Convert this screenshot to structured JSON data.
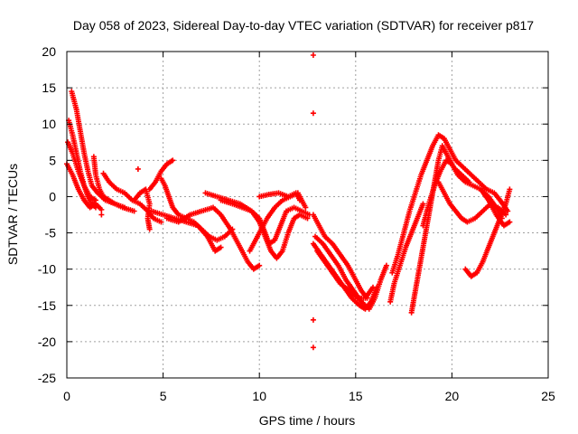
{
  "chart_data": {
    "type": "scatter",
    "title": "Day 058 of 2023, Sidereal Day-to-day VTEC variation (SDTVAR) for receiver p817",
    "xlabel": "GPS time / hours",
    "ylabel": "SDTVAR / TECUs",
    "xlim": [
      0,
      25
    ],
    "ylim": [
      -25,
      20
    ],
    "xticks": [
      0,
      5,
      10,
      15,
      20,
      25
    ],
    "yticks": [
      -25,
      -20,
      -15,
      -10,
      -5,
      0,
      5,
      10,
      15,
      20
    ],
    "grid": true,
    "marker": "+",
    "color": "#ff0000",
    "series": [
      {
        "name": "s1",
        "points": [
          [
            0.0,
            4.5
          ],
          [
            0.3,
            3.0
          ],
          [
            0.6,
            1.0
          ],
          [
            0.9,
            -0.5
          ],
          [
            1.2,
            -1.5
          ],
          [
            1.5,
            -1.0
          ],
          [
            1.8,
            -1.8
          ]
        ]
      },
      {
        "name": "s2",
        "points": [
          [
            0.05,
            7.5
          ],
          [
            0.3,
            6.0
          ],
          [
            0.6,
            3.5
          ],
          [
            0.9,
            1.5
          ],
          [
            1.2,
            0.0
          ],
          [
            1.5,
            -0.5
          ]
        ]
      },
      {
        "name": "s3",
        "points": [
          [
            0.1,
            10.5
          ],
          [
            0.3,
            8.5
          ],
          [
            0.5,
            6.0
          ],
          [
            0.7,
            3.5
          ],
          [
            0.9,
            1.5
          ],
          [
            1.1,
            0.0
          ],
          [
            1.3,
            -1.0
          ],
          [
            1.5,
            -1.5
          ]
        ]
      },
      {
        "name": "s4",
        "points": [
          [
            0.25,
            14.5
          ],
          [
            0.5,
            12.0
          ],
          [
            0.7,
            9.0
          ],
          [
            0.9,
            6.0
          ],
          [
            1.1,
            3.5
          ],
          [
            1.3,
            1.5
          ],
          [
            1.6,
            0.5
          ],
          [
            2.0,
            -0.5
          ],
          [
            2.5,
            -1.0
          ],
          [
            3.0,
            -1.5
          ]
        ]
      },
      {
        "name": "s5",
        "points": [
          [
            1.4,
            5.5
          ],
          [
            1.5,
            3.0
          ],
          [
            1.7,
            1.0
          ],
          [
            1.9,
            0.0
          ],
          [
            2.2,
            -0.5
          ],
          [
            2.5,
            -1.0
          ],
          [
            2.9,
            -1.5
          ],
          [
            3.5,
            -2.0
          ]
        ]
      },
      {
        "name": "s6",
        "points": [
          [
            1.9,
            3.2
          ],
          [
            2.2,
            2.0
          ],
          [
            2.6,
            1.0
          ],
          [
            3.0,
            0.5
          ],
          [
            3.4,
            -0.5
          ],
          [
            3.8,
            -1.0
          ],
          [
            4.2,
            -2.0
          ],
          [
            4.5,
            -3.0
          ],
          [
            4.9,
            -3.5
          ]
        ]
      },
      {
        "name": "s7",
        "points": [
          [
            3.5,
            -0.5
          ],
          [
            3.8,
            0.5
          ],
          [
            4.1,
            1.0
          ],
          [
            4.3,
            -1.0
          ],
          [
            4.2,
            -3.0
          ],
          [
            4.3,
            -4.5
          ]
        ]
      },
      {
        "name": "s8",
        "points": [
          [
            4.3,
            1.0
          ],
          [
            4.6,
            2.0
          ],
          [
            4.9,
            3.5
          ],
          [
            5.2,
            4.5
          ],
          [
            5.5,
            5.0
          ]
        ]
      },
      {
        "name": "s9",
        "points": [
          [
            4.9,
            2.5
          ],
          [
            5.1,
            1.5
          ],
          [
            5.3,
            0.0
          ],
          [
            5.5,
            -1.5
          ],
          [
            5.8,
            -2.5
          ],
          [
            6.2,
            -3.0
          ],
          [
            6.6,
            -3.5
          ],
          [
            7.0,
            -4.5
          ],
          [
            7.4,
            -5.5
          ],
          [
            7.8,
            -6.0
          ],
          [
            8.2,
            -5.5
          ],
          [
            8.6,
            -4.5
          ]
        ]
      },
      {
        "name": "s10",
        "points": [
          [
            4.4,
            -2.0
          ],
          [
            5.0,
            -2.5
          ],
          [
            5.6,
            -3.0
          ],
          [
            6.2,
            -3.5
          ],
          [
            6.8,
            -4.0
          ],
          [
            7.3,
            -5.5
          ],
          [
            7.7,
            -7.5
          ],
          [
            8.0,
            -7.0
          ]
        ]
      },
      {
        "name": "s11",
        "points": [
          [
            5.2,
            -3.0
          ],
          [
            5.8,
            -3.5
          ],
          [
            6.4,
            -2.5
          ],
          [
            7.0,
            -2.0
          ],
          [
            7.6,
            -1.5
          ],
          [
            8.0,
            -2.5
          ],
          [
            8.5,
            -4.5
          ],
          [
            9.0,
            -7.0
          ],
          [
            9.4,
            -9.0
          ],
          [
            9.7,
            -10.0
          ],
          [
            10.0,
            -9.5
          ]
        ]
      },
      {
        "name": "s12",
        "points": [
          [
            7.2,
            0.5
          ],
          [
            7.8,
            0.0
          ],
          [
            8.4,
            -0.5
          ],
          [
            9.0,
            -1.0
          ],
          [
            9.6,
            -2.0
          ],
          [
            10.0,
            -3.5
          ],
          [
            10.3,
            -5.5
          ],
          [
            10.6,
            -7.5
          ],
          [
            10.9,
            -8.5
          ],
          [
            11.2,
            -7.5
          ],
          [
            11.5,
            -5.0
          ],
          [
            11.8,
            -3.0
          ],
          [
            12.1,
            -2.5
          ],
          [
            12.5,
            -3.0
          ]
        ]
      },
      {
        "name": "s13",
        "points": [
          [
            8.0,
            -0.5
          ],
          [
            8.6,
            -1.0
          ],
          [
            9.1,
            -1.5
          ],
          [
            9.6,
            -2.0
          ],
          [
            10.0,
            -3.0
          ],
          [
            10.3,
            -5.0
          ],
          [
            10.5,
            -6.5
          ],
          [
            10.8,
            -6.0
          ],
          [
            11.1,
            -4.0
          ],
          [
            11.4,
            -2.0
          ],
          [
            11.8,
            -1.5
          ],
          [
            12.2,
            -2.0
          ],
          [
            12.6,
            -2.5
          ]
        ]
      },
      {
        "name": "s14",
        "points": [
          [
            9.5,
            -7.5
          ],
          [
            9.8,
            -6.0
          ],
          [
            10.1,
            -4.5
          ],
          [
            10.4,
            -3.0
          ],
          [
            10.8,
            -1.5
          ],
          [
            11.2,
            -0.5
          ],
          [
            11.6,
            0.0
          ],
          [
            12.0,
            0.5
          ],
          [
            12.2,
            -0.5
          ],
          [
            12.4,
            -1.5
          ]
        ]
      },
      {
        "name": "s15",
        "points": [
          [
            10.0,
            0.0
          ],
          [
            10.5,
            0.3
          ],
          [
            11.0,
            0.5
          ],
          [
            11.5,
            0.0
          ],
          [
            11.9,
            0.5
          ],
          [
            12.1,
            -0.5
          ]
        ]
      },
      {
        "name": "s16",
        "points": [
          [
            12.8,
            -2.5
          ],
          [
            13.1,
            -4.0
          ],
          [
            13.4,
            -5.5
          ],
          [
            13.8,
            -6.5
          ],
          [
            14.2,
            -8.0
          ],
          [
            14.6,
            -9.5
          ],
          [
            15.0,
            -11.5
          ],
          [
            15.3,
            -13.0
          ],
          [
            15.6,
            -14.0
          ]
        ]
      },
      {
        "name": "s17",
        "points": [
          [
            12.9,
            -5.5
          ],
          [
            13.3,
            -6.5
          ],
          [
            13.7,
            -8.0
          ],
          [
            14.1,
            -9.5
          ],
          [
            14.5,
            -11.5
          ],
          [
            14.9,
            -13.0
          ],
          [
            15.3,
            -14.5
          ],
          [
            15.7,
            -15.5
          ],
          [
            16.0,
            -14.0
          ],
          [
            16.3,
            -11.5
          ],
          [
            16.6,
            -9.5
          ]
        ]
      },
      {
        "name": "s18",
        "points": [
          [
            12.8,
            -6.5
          ],
          [
            13.2,
            -8.0
          ],
          [
            13.6,
            -9.5
          ],
          [
            14.0,
            -11.0
          ],
          [
            14.4,
            -12.5
          ],
          [
            14.8,
            -14.0
          ],
          [
            15.2,
            -15.0
          ],
          [
            15.5,
            -15.5
          ],
          [
            15.8,
            -14.5
          ],
          [
            16.1,
            -12.5
          ]
        ]
      },
      {
        "name": "s19",
        "points": [
          [
            13.0,
            -7.5
          ],
          [
            13.4,
            -9.0
          ],
          [
            13.8,
            -10.5
          ],
          [
            14.2,
            -12.0
          ],
          [
            14.7,
            -13.0
          ],
          [
            15.1,
            -14.0
          ],
          [
            15.5,
            -14.0
          ],
          [
            15.9,
            -12.5
          ]
        ]
      },
      {
        "name": "s20",
        "points": [
          [
            16.8,
            -14.5
          ],
          [
            17.0,
            -12.0
          ],
          [
            17.3,
            -9.5
          ],
          [
            17.6,
            -7.0
          ],
          [
            17.9,
            -5.0
          ],
          [
            18.2,
            -3.0
          ],
          [
            18.5,
            -1.0
          ]
        ]
      },
      {
        "name": "s21",
        "points": [
          [
            16.9,
            -10.5
          ],
          [
            17.2,
            -8.0
          ],
          [
            17.5,
            -5.0
          ],
          [
            17.8,
            -2.0
          ],
          [
            18.1,
            0.5
          ],
          [
            18.4,
            3.0
          ],
          [
            18.7,
            5.0
          ],
          [
            19.0,
            7.0
          ],
          [
            19.3,
            8.5
          ],
          [
            19.6,
            8.0
          ],
          [
            19.9,
            6.5
          ],
          [
            20.2,
            5.0
          ],
          [
            20.6,
            4.0
          ],
          [
            21.0,
            3.0
          ],
          [
            21.4,
            2.0
          ],
          [
            21.8,
            1.0
          ],
          [
            22.2,
            0.5
          ],
          [
            22.5,
            -0.5
          ],
          [
            22.9,
            -2.0
          ]
        ]
      },
      {
        "name": "s22",
        "points": [
          [
            17.9,
            -16.0
          ],
          [
            18.1,
            -13.0
          ],
          [
            18.3,
            -10.0
          ],
          [
            18.5,
            -7.0
          ],
          [
            18.7,
            -4.0
          ],
          [
            18.9,
            -1.0
          ],
          [
            19.1,
            2.0
          ],
          [
            19.3,
            5.0
          ],
          [
            19.5,
            7.0
          ],
          [
            19.8,
            5.5
          ],
          [
            20.1,
            4.0
          ],
          [
            20.5,
            3.0
          ],
          [
            20.9,
            2.0
          ]
        ]
      },
      {
        "name": "s23",
        "points": [
          [
            18.5,
            -4.0
          ],
          [
            18.8,
            -1.0
          ],
          [
            19.1,
            1.5
          ],
          [
            19.4,
            3.5
          ],
          [
            19.7,
            5.0
          ],
          [
            20.0,
            4.5
          ],
          [
            20.3,
            3.0
          ],
          [
            20.7,
            2.0
          ],
          [
            21.1,
            1.5
          ],
          [
            21.5,
            1.0
          ],
          [
            21.9,
            0.0
          ],
          [
            22.3,
            -1.5
          ],
          [
            22.6,
            -3.0
          ]
        ]
      },
      {
        "name": "s24",
        "points": [
          [
            19.3,
            2.0
          ],
          [
            19.6,
            0.5
          ],
          [
            19.9,
            -1.0
          ],
          [
            20.2,
            -2.0
          ],
          [
            20.5,
            -3.0
          ],
          [
            20.8,
            -3.5
          ],
          [
            21.2,
            -3.0
          ],
          [
            21.6,
            -2.0
          ],
          [
            22.0,
            -1.0
          ],
          [
            22.4,
            -1.5
          ],
          [
            22.8,
            -2.5
          ]
        ]
      },
      {
        "name": "s25",
        "points": [
          [
            20.7,
            -10.0
          ],
          [
            21.0,
            -11.0
          ],
          [
            21.3,
            -10.5
          ],
          [
            21.6,
            -9.0
          ],
          [
            21.9,
            -7.0
          ],
          [
            22.2,
            -5.0
          ],
          [
            22.5,
            -3.0
          ],
          [
            22.8,
            -1.0
          ],
          [
            23.0,
            1.0
          ]
        ]
      },
      {
        "name": "s26",
        "points": [
          [
            21.5,
            1.0
          ],
          [
            21.9,
            -0.5
          ],
          [
            22.3,
            -2.5
          ],
          [
            22.7,
            -4.0
          ],
          [
            23.0,
            -3.5
          ]
        ]
      },
      {
        "name": "outliers",
        "points": [
          [
            12.8,
            19.5
          ],
          [
            12.8,
            11.5
          ],
          [
            12.8,
            -17.0
          ],
          [
            12.8,
            -20.8
          ],
          [
            3.7,
            3.8
          ],
          [
            1.8,
            -2.5
          ]
        ]
      }
    ]
  }
}
